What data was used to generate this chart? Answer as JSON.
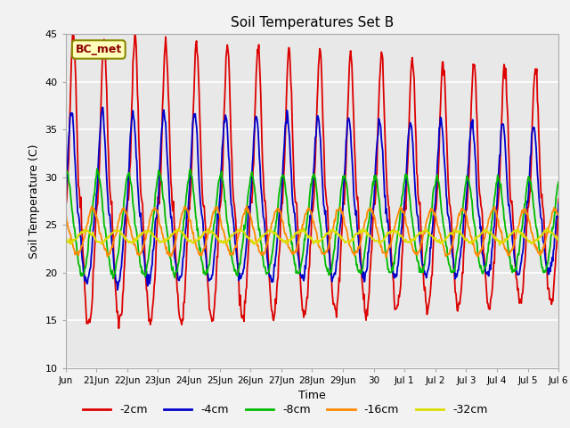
{
  "title": "Soil Temperatures Set B",
  "xlabel": "Time",
  "ylabel": "Soil Temperature (C)",
  "ylim": [
    10,
    45
  ],
  "yticks": [
    10,
    15,
    20,
    25,
    30,
    35,
    40,
    45
  ],
  "annotation": "BC_met",
  "fig_bg_color": "#f2f2f2",
  "plot_bg_color": "#e8e8e8",
  "series_colors": {
    "-2cm": "#dd0000",
    "-4cm": "#0000cc",
    "-8cm": "#00bb00",
    "-16cm": "#ff8800",
    "-32cm": "#dddd00"
  },
  "xtick_labels": [
    "Jun",
    "21Jun",
    "22Jun",
    "23Jun",
    "24Jun",
    "25Jun",
    "26Jun",
    "27Jun",
    "28Jun",
    "29Jun",
    "30",
    "Jul 1",
    "Jul 2",
    "Jul 3",
    "Jul 4",
    "Jul 5",
    "Jul 6"
  ]
}
